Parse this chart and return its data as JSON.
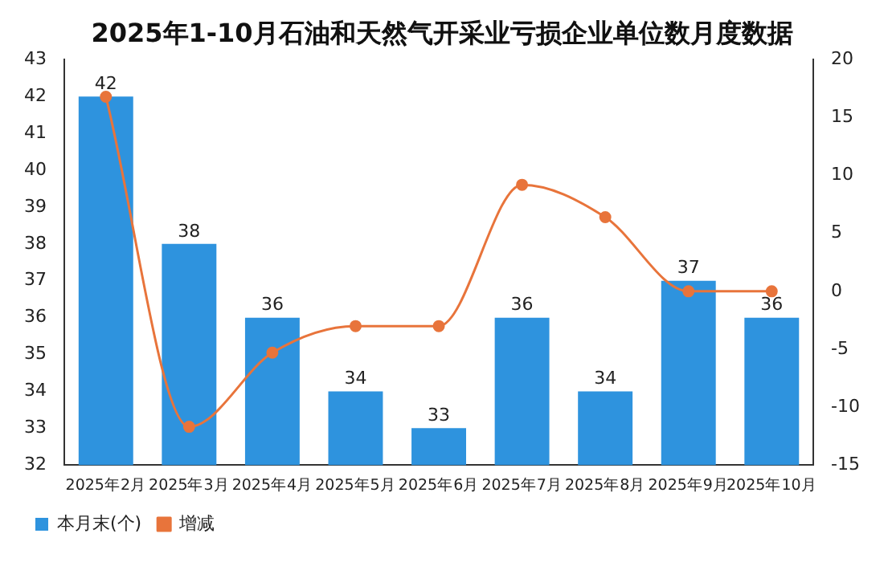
{
  "chart_data": {
    "type": "bar",
    "title": "2025年1-10月石油和天然气开采业亏损企业单位数月度数据",
    "categories": [
      "2025年2月",
      "2025年3月",
      "2025年4月",
      "2025年5月",
      "2025年6月",
      "2025年7月",
      "2025年8月",
      "2025年9月",
      "2025年10月"
    ],
    "series": [
      {
        "name": "本月末(个)",
        "color": "#2e93de",
        "values": [
          42,
          38,
          36,
          34,
          33,
          36,
          34,
          37,
          36
        ],
        "value_labels": [
          "42",
          "38",
          "36",
          "34",
          "33",
          "36",
          "34",
          "37",
          "36"
        ]
      },
      {
        "name": "增减",
        "type": "line",
        "axis": "y2",
        "color": "#e8743b",
        "values": [
          16.8,
          -11.7,
          -5.3,
          -3,
          -3,
          9.2,
          6.4,
          0,
          0
        ]
      }
    ],
    "ylim": [
      32,
      43
    ],
    "yticks": [
      32,
      33,
      34,
      35,
      36,
      37,
      38,
      39,
      40,
      41,
      42,
      43
    ],
    "y2lim": [
      -15,
      20
    ],
    "y2ticks": [
      -15,
      -10,
      -5,
      0,
      5,
      10,
      15,
      20
    ],
    "grid": false,
    "legend": "bottom left",
    "marker": "circle"
  }
}
